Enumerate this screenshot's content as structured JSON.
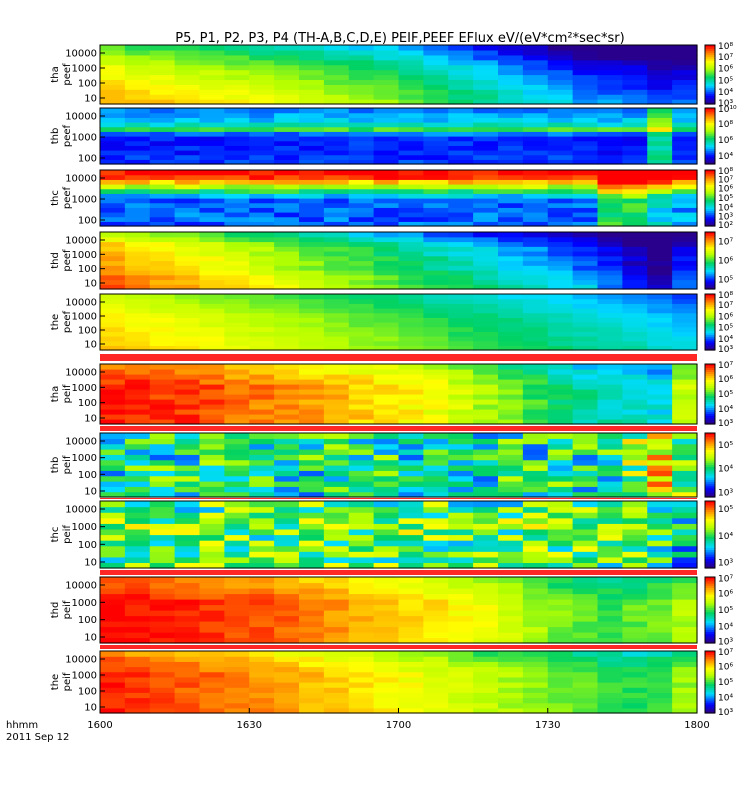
{
  "chart_data": {
    "type": "heatmap",
    "title": "P5, P1, P2, P3, P4 (TH-A,B,C,D,E) PEIF,PEEF EFlux eV/(eV*cm²*sec*sr)",
    "x_tick_labels": [
      "1600",
      "1630",
      "1700",
      "1730",
      "1800"
    ],
    "x_label_left": "hhmm",
    "date_label": "2011 Sep 12",
    "yscale": "log",
    "panels": [
      {
        "name": "tha peef",
        "ylabel_line1": "tha",
        "ylabel_line2": "peef",
        "y_ticks": [
          "10000",
          "1000",
          "100",
          "10"
        ],
        "colorbar_ticks": [
          "10⁸",
          "10⁷",
          "10⁶",
          "10⁵",
          "10⁴",
          "10³"
        ],
        "colorbar_exponents": [
          8,
          7,
          6,
          5,
          4,
          3
        ],
        "color_range_log": [
          3,
          8
        ],
        "x_profile_log": [
          6.8,
          6.7,
          6.6,
          6.5,
          6.4,
          6.3,
          6.2,
          6.1,
          6.0,
          5.8,
          5.7,
          5.6,
          5.4,
          5.2,
          5.0,
          4.8,
          4.6,
          4.4,
          4.2,
          4.0,
          3.9,
          3.8,
          3.6,
          3.7
        ],
        "energy_offset_log": [
          0.3,
          0.2,
          0.1,
          0.0,
          -0.1,
          -0.2,
          -0.3,
          -0.4,
          -0.6,
          -0.8,
          -1.0,
          -1.2
        ],
        "noise": 0.15
      },
      {
        "name": "thb peef",
        "ylabel_line1": "thb",
        "ylabel_line2": "peef",
        "y_ticks": [
          "10000",
          "1000",
          "100"
        ],
        "colorbar_ticks": [
          "10¹⁰",
          "10⁸",
          "10⁶",
          "10⁴"
        ],
        "colorbar_exponents": [
          10,
          8,
          6,
          4
        ],
        "color_range_log": [
          3,
          10
        ],
        "x_profile_log": [
          4.0,
          4.0,
          4.0,
          4.0,
          4.0,
          4.0,
          4.0,
          4.0,
          4.0,
          4.0,
          4.0,
          4.0,
          4.0,
          4.0,
          4.0,
          4.0,
          4.0,
          4.0,
          4.0,
          4.0,
          4.0,
          4.0,
          5.8,
          4.0
        ],
        "energy_offset_log": [
          0.2,
          0.1,
          0.0,
          0.0,
          0.0,
          0.0,
          0.5,
          2.5,
          1.5,
          1.0,
          0.8,
          0.6
        ],
        "noise": 0.3
      },
      {
        "name": "thc peef",
        "ylabel_line1": "thc",
        "ylabel_line2": "peef",
        "y_ticks": [
          "10000",
          "1000",
          "100"
        ],
        "colorbar_ticks": [
          "10⁸",
          "10⁷",
          "10⁶",
          "10⁵",
          "10⁴",
          "10³",
          "10²"
        ],
        "colorbar_exponents": [
          8,
          7,
          6,
          5,
          4,
          3,
          2
        ],
        "color_range_log": [
          2,
          8
        ],
        "x_profile_log": [
          3.2,
          3.2,
          3.2,
          3.2,
          3.2,
          3.2,
          3.2,
          3.2,
          3.2,
          3.2,
          3.2,
          3.2,
          3.2,
          3.2,
          3.2,
          3.2,
          3.2,
          3.2,
          3.2,
          3.2,
          4.8,
          4.8,
          4.0,
          3.5
        ],
        "energy_offset_log": [
          0.0,
          0.0,
          0.0,
          0.0,
          0.0,
          0.0,
          0.5,
          1.5,
          2.5,
          3.5,
          4.5,
          4.8
        ],
        "noise": 0.4
      },
      {
        "name": "thd peef",
        "ylabel_line1": "thd",
        "ylabel_line2": "peef",
        "y_ticks": [
          "10000",
          "1000",
          "100",
          "10"
        ],
        "colorbar_ticks": [
          "10⁷",
          "10⁶",
          "10⁵"
        ],
        "colorbar_exponents": [
          7,
          6,
          5
        ],
        "color_range_log": [
          4.5,
          7.5
        ],
        "x_profile_log": [
          7.0,
          6.9,
          6.8,
          6.7,
          6.6,
          6.5,
          6.4,
          6.3,
          6.2,
          6.1,
          6.0,
          5.9,
          5.8,
          5.7,
          5.6,
          5.5,
          5.4,
          5.3,
          5.2,
          5.1,
          4.9,
          4.7,
          4.5,
          4.9
        ],
        "energy_offset_log": [
          0.3,
          0.2,
          0.2,
          0.1,
          0.0,
          0.0,
          0.0,
          -0.1,
          -0.1,
          -0.2,
          -0.4,
          -0.6
        ],
        "noise": 0.1
      },
      {
        "name": "the peef",
        "ylabel_line1": "the",
        "ylabel_line2": "peef",
        "y_ticks": [
          "10000",
          "1000",
          "100",
          "10"
        ],
        "colorbar_ticks": [
          "10⁸",
          "10⁷",
          "10⁶",
          "10⁵",
          "10⁴",
          "10³"
        ],
        "colorbar_exponents": [
          8,
          7,
          6,
          5,
          4,
          3
        ],
        "color_range_log": [
          3,
          8
        ],
        "x_profile_log": [
          6.8,
          6.7,
          6.6,
          6.5,
          6.4,
          6.3,
          6.2,
          6.1,
          6.0,
          5.9,
          5.8,
          5.7,
          5.6,
          5.5,
          5.4,
          5.3,
          5.2,
          5.1,
          5.0,
          4.9,
          4.8,
          4.7,
          4.6,
          4.5
        ],
        "energy_offset_log": [
          0.2,
          0.1,
          0.1,
          0.0,
          0.0,
          -0.1,
          -0.1,
          -0.2,
          -0.3,
          -0.4,
          -0.5,
          -0.6
        ],
        "noise": 0.1
      },
      {
        "name": "tha peif",
        "ylabel_line1": "tha",
        "ylabel_line2": "peif",
        "y_ticks": [
          "10000",
          "1000",
          "100",
          "10"
        ],
        "colorbar_ticks": [
          "10⁷",
          "10⁶",
          "10⁵",
          "10⁴",
          "10³"
        ],
        "colorbar_exponents": [
          7,
          6,
          5,
          4,
          3
        ],
        "color_range_log": [
          3,
          7
        ],
        "x_profile_log": [
          6.9,
          6.9,
          6.8,
          6.8,
          6.7,
          6.6,
          6.5,
          6.4,
          6.3,
          6.2,
          6.1,
          6.0,
          5.9,
          5.8,
          5.6,
          5.4,
          5.2,
          5.0,
          4.8,
          4.6,
          4.5,
          4.4,
          4.3,
          5.5
        ],
        "energy_offset_log": [
          0.0,
          0.0,
          0.0,
          0.0,
          0.0,
          0.0,
          0.0,
          0.0,
          -0.1,
          -0.2,
          -0.3,
          -0.4
        ],
        "noise": 0.2
      },
      {
        "name": "thb peif",
        "ylabel_line1": "thb",
        "ylabel_line2": "peif",
        "y_ticks": [
          "10000",
          "1000",
          "100",
          "10"
        ],
        "colorbar_ticks": [
          "10⁵",
          "10⁴",
          "10³"
        ],
        "colorbar_exponents": [
          5,
          4,
          3
        ],
        "color_range_log": [
          2.8,
          5.5
        ],
        "x_profile_log": [
          3.9,
          3.9,
          3.9,
          3.9,
          3.9,
          3.9,
          3.9,
          3.9,
          3.9,
          3.9,
          3.9,
          3.9,
          3.9,
          3.9,
          3.9,
          3.9,
          3.9,
          3.9,
          3.9,
          3.9,
          3.9,
          4.3,
          4.8,
          4.2
        ],
        "energy_offset_log": [
          0.0,
          0.0,
          0.0,
          0.0,
          0.0,
          0.0,
          0.0,
          0.0,
          0.0,
          0.0,
          0.0,
          0.0
        ],
        "noise": 0.6
      },
      {
        "name": "thc peif",
        "ylabel_line1": "thc",
        "ylabel_line2": "peif",
        "y_ticks": [
          "10000",
          "1000",
          "100",
          "10"
        ],
        "colorbar_ticks": [
          "10⁵",
          "10⁴",
          "10³"
        ],
        "colorbar_exponents": [
          5,
          4,
          3
        ],
        "color_range_log": [
          2.8,
          5.3
        ],
        "x_profile_log": [
          4.0,
          4.0,
          4.0,
          4.0,
          4.0,
          4.0,
          4.0,
          4.0,
          4.0,
          4.0,
          4.0,
          4.0,
          4.0,
          4.0,
          4.0,
          4.0,
          4.0,
          4.0,
          4.0,
          4.0,
          4.0,
          4.0,
          3.9,
          3.5
        ],
        "energy_offset_log": [
          0.0,
          0.0,
          0.0,
          0.0,
          0.0,
          0.0,
          0.1,
          0.2,
          0.1,
          0.0,
          0.0,
          0.0
        ],
        "noise": 0.6
      },
      {
        "name": "thd peif",
        "ylabel_line1": "thd",
        "ylabel_line2": "peif",
        "y_ticks": [
          "10000",
          "1000",
          "100",
          "10"
        ],
        "colorbar_ticks": [
          "10⁷",
          "10⁶",
          "10⁵",
          "10⁴",
          "10³"
        ],
        "colorbar_exponents": [
          7,
          6,
          5,
          4,
          3
        ],
        "color_range_log": [
          3,
          7
        ],
        "x_profile_log": [
          7.0,
          6.95,
          6.9,
          6.85,
          6.8,
          6.75,
          6.7,
          6.6,
          6.5,
          6.4,
          6.3,
          6.2,
          6.1,
          6.0,
          5.9,
          5.8,
          5.6,
          5.4,
          5.2,
          5.1,
          5.0,
          5.1,
          5.2,
          5.4
        ],
        "energy_offset_log": [
          0.0,
          0.0,
          0.0,
          0.0,
          0.0,
          0.0,
          0.0,
          0.0,
          -0.1,
          -0.2,
          -0.3,
          -0.4
        ],
        "noise": 0.15
      },
      {
        "name": "the peif",
        "ylabel_line1": "the",
        "ylabel_line2": "peif",
        "y_ticks": [
          "10000",
          "1000",
          "100",
          "10"
        ],
        "colorbar_ticks": [
          "10⁷",
          "10⁶",
          "10⁵",
          "10⁴",
          "10³"
        ],
        "colorbar_exponents": [
          7,
          6,
          5,
          4,
          3
        ],
        "color_range_log": [
          3,
          7
        ],
        "x_profile_log": [
          6.9,
          6.8,
          6.7,
          6.65,
          6.6,
          6.5,
          6.4,
          6.3,
          6.2,
          6.1,
          6.0,
          5.9,
          5.8,
          5.7,
          5.6,
          5.5,
          5.4,
          5.3,
          5.2,
          5.1,
          5.0,
          4.9,
          5.0,
          5.3
        ],
        "energy_offset_log": [
          0.0,
          0.0,
          0.0,
          0.0,
          0.0,
          0.0,
          0.0,
          0.0,
          -0.1,
          -0.2,
          -0.3,
          -0.5
        ],
        "noise": 0.15
      }
    ]
  }
}
